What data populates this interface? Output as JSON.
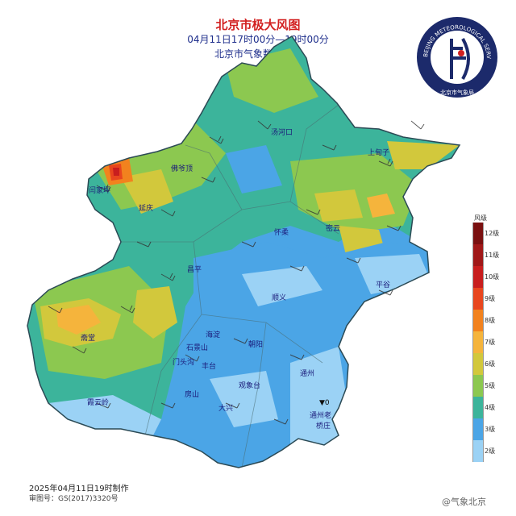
{
  "header": {
    "title": "北京市极大风图",
    "period": "04月11日17时00分—19时00分",
    "organization": "北京市气象数据中心"
  },
  "logo": {
    "arc_text": "BEIJING METEOROLOGICAL SERVICE",
    "cn_text": "北京市气象局"
  },
  "places": [
    {
      "name": "汤河口"
    },
    {
      "name": "上甸子"
    },
    {
      "name": "佛爷顶"
    },
    {
      "name": "闫家坪"
    },
    {
      "name": "延庆"
    },
    {
      "name": "怀柔"
    },
    {
      "name": "密云"
    },
    {
      "name": "昌平"
    },
    {
      "name": "平谷"
    },
    {
      "name": "顺义"
    },
    {
      "name": "斋堂"
    },
    {
      "name": "海淀"
    },
    {
      "name": "朝阳"
    },
    {
      "name": "石景山"
    },
    {
      "name": "门头沟"
    },
    {
      "name": "丰台"
    },
    {
      "name": "通州"
    },
    {
      "name": "观象台"
    },
    {
      "name": "房山"
    },
    {
      "name": "大兴"
    },
    {
      "name": "霞云岭"
    },
    {
      "name": "通州老"
    },
    {
      "name": "桥庄"
    }
  ],
  "station_mark": "▼0",
  "legend": {
    "title": "风级",
    "levels": [
      {
        "label": "12级",
        "color": "#7a1010"
      },
      {
        "label": "11级",
        "color": "#a01818"
      },
      {
        "label": "10级",
        "color": "#c81e1e"
      },
      {
        "label": "9级",
        "color": "#e8461e"
      },
      {
        "label": "8级",
        "color": "#f2821e"
      },
      {
        "label": "7级",
        "color": "#f5b43c"
      },
      {
        "label": "6级",
        "color": "#d2c83c"
      },
      {
        "label": "5级",
        "color": "#8cc850"
      },
      {
        "label": "4级",
        "color": "#3cb49b"
      },
      {
        "label": "3级",
        "color": "#4ba5e6"
      },
      {
        "label": "2级",
        "color": "#9bd2f5"
      }
    ]
  },
  "footer": {
    "made": "2025年04月11日19时制作",
    "audit": "审图号：GS(2017)3320号",
    "watermark": "@气象北京"
  }
}
